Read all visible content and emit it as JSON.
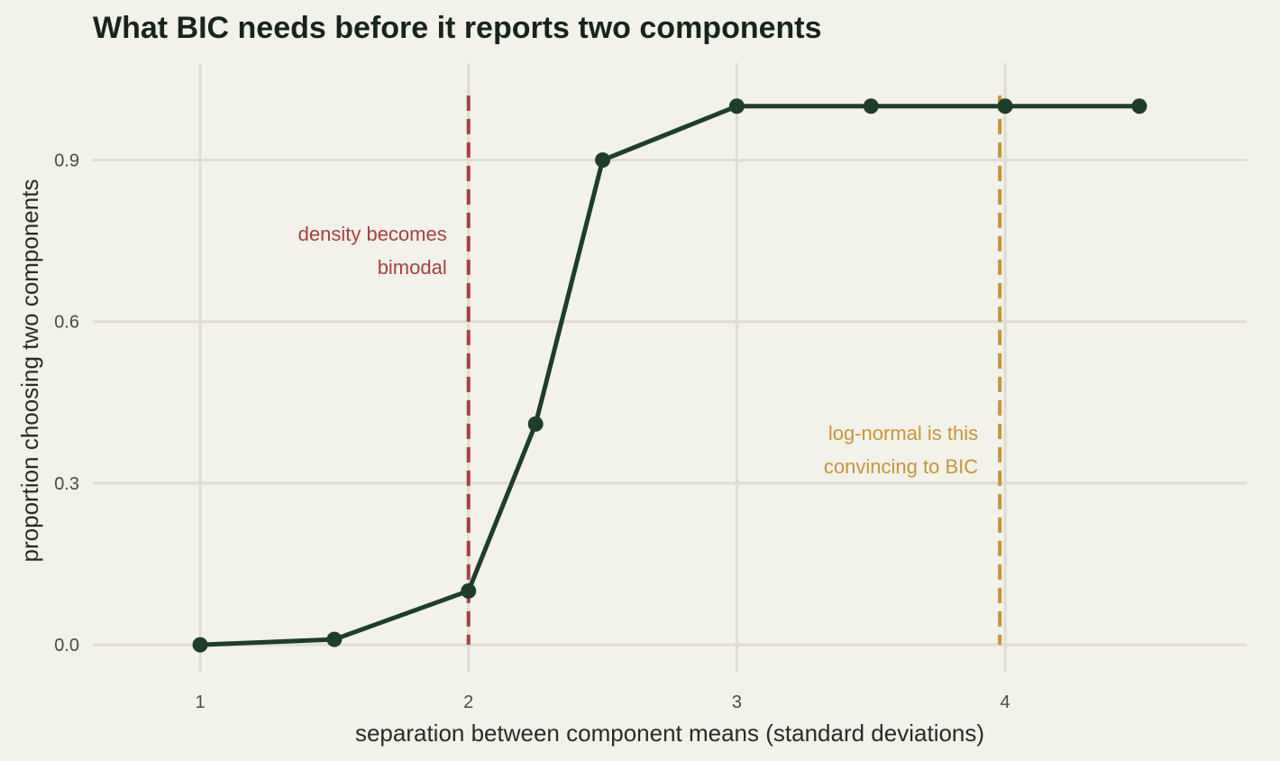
{
  "chart_data": {
    "type": "line",
    "title": "What BIC needs before it reports two components",
    "xlabel": "separation between component means (standard deviations)",
    "ylabel": "proportion choosing two components",
    "x": [
      1,
      1.5,
      2,
      2.25,
      2.5,
      3,
      3.5,
      4,
      4.5
    ],
    "values": [
      0.0,
      0.01,
      0.1,
      0.41,
      0.9,
      1.0,
      1.0,
      1.0,
      1.0
    ],
    "xlim": [
      0.6,
      4.9
    ],
    "ylim": [
      -0.05,
      1.08
    ],
    "x_ticks": [
      1,
      2,
      3,
      4
    ],
    "y_ticks": [
      0.0,
      0.3,
      0.6,
      0.9
    ],
    "x_tick_labels": [
      "1",
      "2",
      "3",
      "4"
    ],
    "y_tick_labels": [
      "0.0",
      "0.3",
      "0.6",
      "0.9"
    ],
    "grid": true,
    "legend": "none",
    "reference_lines": [
      {
        "x": 2,
        "label_lines": [
          "density becomes",
          "bimodal"
        ],
        "color": "#a8403f",
        "label_side": "left",
        "label_y_top": 0.75
      },
      {
        "x": 3.98,
        "label_lines": [
          "log-normal is this",
          "convincing to BIC"
        ],
        "color": "#c6963a",
        "label_side": "left",
        "label_y_top": 0.38
      }
    ],
    "line_color": "#1f3d2b",
    "grid_color": "#dfddd3",
    "title_color": "#17241d"
  }
}
